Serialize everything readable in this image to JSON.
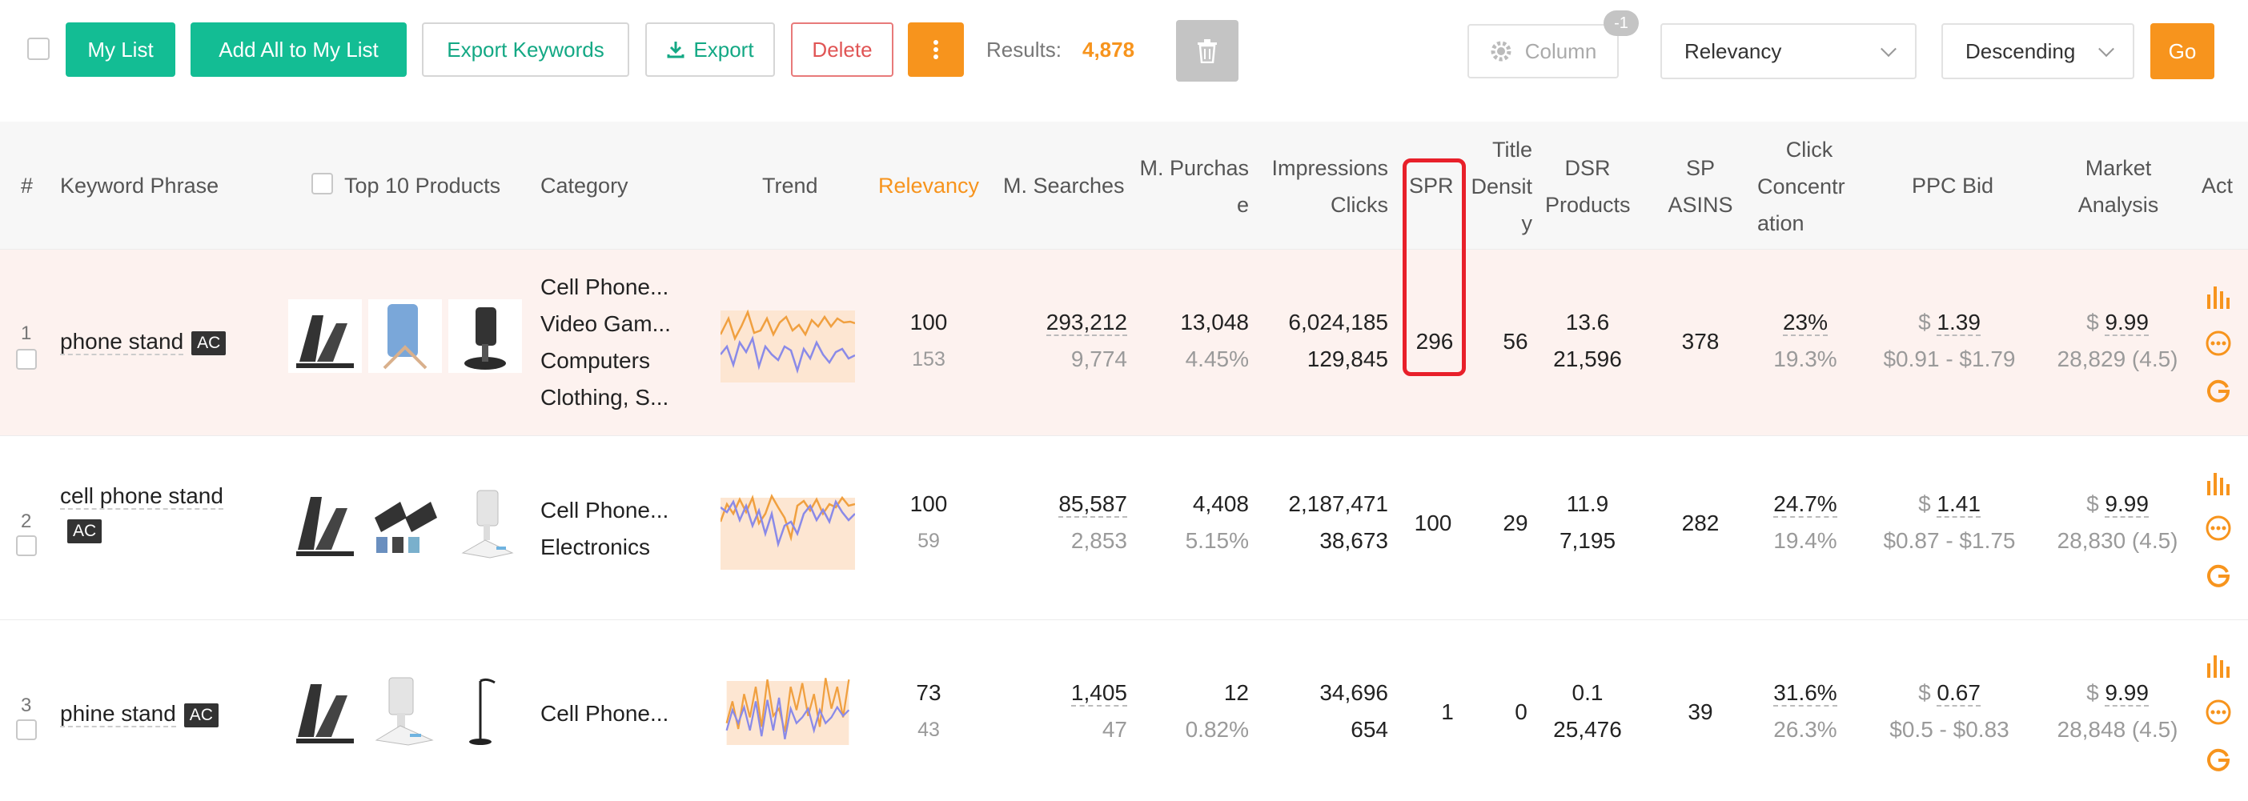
{
  "toolbar": {
    "my_list": "My List",
    "add_all": "Add All to My List",
    "export_keywords": "Export Keywords",
    "export": "Export",
    "delete": "Delete",
    "more": "⋮",
    "results_label": "Results:",
    "results_value": "4,878",
    "column": "Column",
    "column_badge": "-1",
    "sort_field": "Relevancy",
    "sort_order": "Descending",
    "go": "Go"
  },
  "colors": {
    "accent_green": "#13bd94",
    "accent_orange": "#f7941d",
    "danger_red": "#e05555",
    "highlight_red": "#e8202a"
  },
  "headers": {
    "num": "#",
    "keyword": "Keyword Phrase",
    "top10": "Top 10 Products",
    "category": "Category",
    "trend": "Trend",
    "relevancy": "Relevancy",
    "msearches": "M. Searches",
    "mpurchase_1": "M. Purchas",
    "mpurchase_2": "e",
    "impressions": "Impressions",
    "clicks": "Clicks",
    "spr": "SPR",
    "title_1": "Title",
    "title_2": "Densit",
    "title_3": "y",
    "dsr": "DSR",
    "products": "Products",
    "sp": "SP",
    "asins": "ASINS",
    "click_1": "Click",
    "click_2": "Concentr",
    "click_3": "ation",
    "ppc": "PPC Bid",
    "market_1": "Market",
    "market_2": "Analysis",
    "act": "Act"
  },
  "rows": [
    {
      "num": "1",
      "keyword": "phone stand",
      "badge": "AC",
      "categories": [
        "Cell Phone...",
        "Video Gam...",
        "Computers",
        "Clothing, S..."
      ],
      "relevancy": "100",
      "relevancy_sub": "153",
      "searches": "293,212",
      "searches_sub": "9,774",
      "purchase": "13,048",
      "purchase_sub": "4.45%",
      "impressions": "6,024,185",
      "clicks": "129,845",
      "spr": "296",
      "title": "56",
      "dsr": "13.6",
      "products": "21,596",
      "sp_asins": "378",
      "click_conc": "23%",
      "click_conc_sub": "19.3%",
      "ppc_currency": "$",
      "ppc": "1.39",
      "ppc_range": "$0.91 - $1.79",
      "market_currency": "$",
      "market": "9.99",
      "market_sub": "28,829 (4.5)"
    },
    {
      "num": "2",
      "keyword": "cell phone stand",
      "badge": "AC",
      "categories": [
        "Cell Phone...",
        "Electronics"
      ],
      "relevancy": "100",
      "relevancy_sub": "59",
      "searches": "85,587",
      "searches_sub": "2,853",
      "purchase": "4,408",
      "purchase_sub": "5.15%",
      "impressions": "2,187,471",
      "clicks": "38,673",
      "spr": "100",
      "title": "29",
      "dsr": "11.9",
      "products": "7,195",
      "sp_asins": "282",
      "click_conc": "24.7%",
      "click_conc_sub": "19.4%",
      "ppc_currency": "$",
      "ppc": "1.41",
      "ppc_range": "$0.87 - $1.75",
      "market_currency": "$",
      "market": "9.99",
      "market_sub": "28,830 (4.5)"
    },
    {
      "num": "3",
      "keyword": "phine stand",
      "badge": "AC",
      "categories": [
        "Cell Phone..."
      ],
      "relevancy": "73",
      "relevancy_sub": "43",
      "searches": "1,405",
      "searches_sub": "47",
      "purchase": "12",
      "purchase_sub": "0.82%",
      "impressions": "34,696",
      "clicks": "654",
      "spr": "1",
      "title": "0",
      "dsr": "0.1",
      "products": "25,476",
      "sp_asins": "39",
      "click_conc": "31.6%",
      "click_conc_sub": "26.3%",
      "ppc_currency": "$",
      "ppc": "0.67",
      "ppc_range": "$0.5 - $0.83",
      "market_currency": "$",
      "market": "9.99",
      "market_sub": "28,848 (4.5)"
    }
  ]
}
